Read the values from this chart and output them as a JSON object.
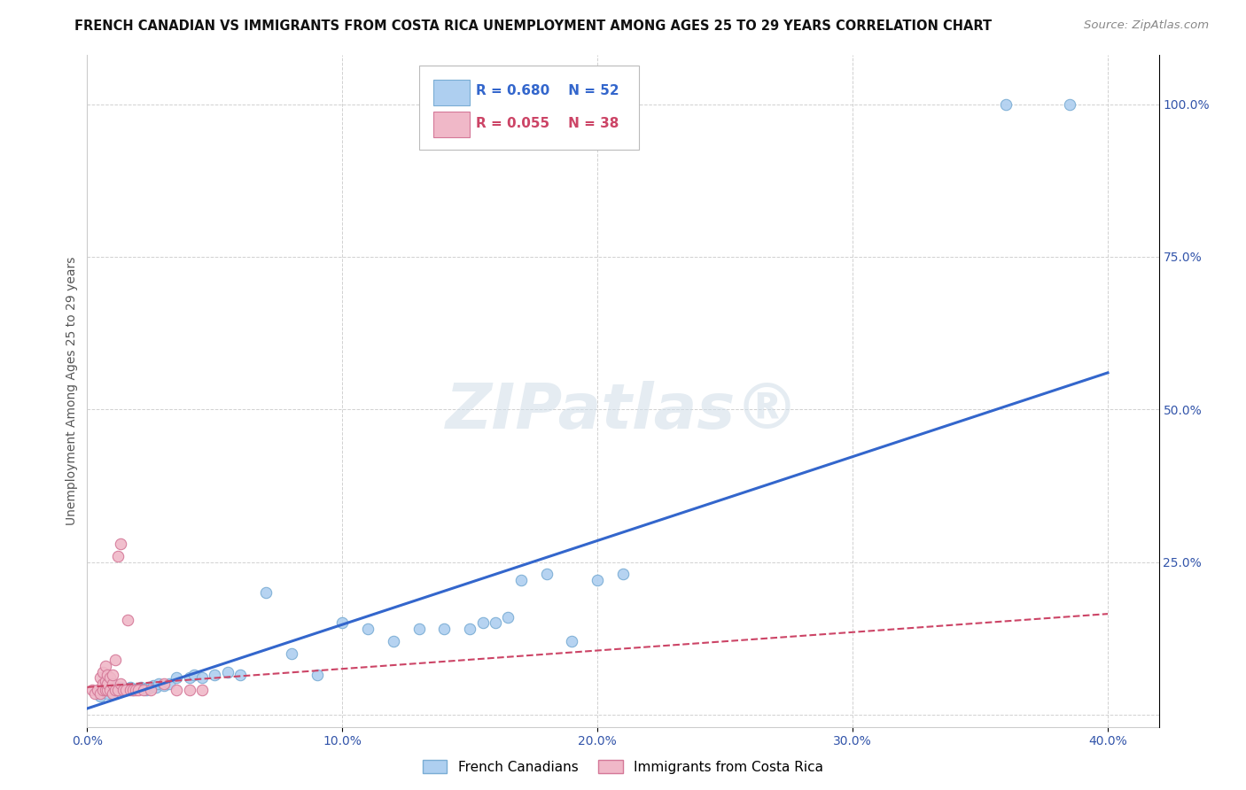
{
  "title": "FRENCH CANADIAN VS IMMIGRANTS FROM COSTA RICA UNEMPLOYMENT AMONG AGES 25 TO 29 YEARS CORRELATION CHART",
  "source": "Source: ZipAtlas.com",
  "ylabel": "Unemployment Among Ages 25 to 29 years",
  "xlim": [
    0.0,
    0.42
  ],
  "ylim": [
    -0.02,
    1.08
  ],
  "xticks": [
    0.0,
    0.1,
    0.2,
    0.3,
    0.4
  ],
  "xtick_labels": [
    "0.0%",
    "10.0%",
    "20.0%",
    "30.0%",
    "40.0%"
  ],
  "yticks": [
    0.0,
    0.25,
    0.5,
    0.75,
    1.0
  ],
  "ytick_labels": [
    "",
    "25.0%",
    "50.0%",
    "75.0%",
    "100.0%"
  ],
  "blue_R": 0.68,
  "blue_N": 52,
  "pink_R": 0.055,
  "pink_N": 38,
  "blue_color": "#aecff0",
  "blue_edge_color": "#7aadd4",
  "pink_color": "#f0b8c8",
  "pink_edge_color": "#d47898",
  "blue_line_color": "#3366cc",
  "pink_line_color": "#cc4466",
  "blue_label": "French Canadians",
  "pink_label": "Immigrants from Costa Rica",
  "background_color": "#ffffff",
  "blue_points_x": [
    0.005,
    0.007,
    0.008,
    0.009,
    0.01,
    0.01,
    0.011,
    0.012,
    0.013,
    0.014,
    0.015,
    0.016,
    0.017,
    0.018,
    0.019,
    0.02,
    0.021,
    0.022,
    0.023,
    0.024,
    0.025,
    0.026,
    0.027,
    0.028,
    0.03,
    0.032,
    0.035,
    0.04,
    0.042,
    0.045,
    0.05,
    0.055,
    0.06,
    0.07,
    0.08,
    0.09,
    0.1,
    0.11,
    0.12,
    0.13,
    0.14,
    0.15,
    0.155,
    0.16,
    0.165,
    0.17,
    0.18,
    0.19,
    0.2,
    0.21,
    0.36,
    0.385
  ],
  "blue_points_y": [
    0.03,
    0.04,
    0.035,
    0.04,
    0.035,
    0.045,
    0.04,
    0.04,
    0.045,
    0.04,
    0.042,
    0.04,
    0.045,
    0.04,
    0.042,
    0.042,
    0.045,
    0.042,
    0.04,
    0.045,
    0.045,
    0.048,
    0.045,
    0.05,
    0.048,
    0.05,
    0.06,
    0.06,
    0.065,
    0.06,
    0.065,
    0.07,
    0.065,
    0.2,
    0.1,
    0.065,
    0.15,
    0.14,
    0.12,
    0.14,
    0.14,
    0.14,
    0.15,
    0.15,
    0.16,
    0.22,
    0.23,
    0.12,
    0.22,
    0.23,
    1.0,
    1.0
  ],
  "pink_points_x": [
    0.002,
    0.003,
    0.004,
    0.005,
    0.005,
    0.006,
    0.006,
    0.006,
    0.007,
    0.007,
    0.007,
    0.008,
    0.008,
    0.008,
    0.009,
    0.009,
    0.01,
    0.01,
    0.01,
    0.011,
    0.011,
    0.012,
    0.012,
    0.013,
    0.013,
    0.014,
    0.015,
    0.016,
    0.017,
    0.018,
    0.019,
    0.02,
    0.022,
    0.025,
    0.03,
    0.035,
    0.04,
    0.045
  ],
  "pink_points_y": [
    0.04,
    0.035,
    0.04,
    0.035,
    0.06,
    0.05,
    0.04,
    0.07,
    0.04,
    0.055,
    0.08,
    0.04,
    0.05,
    0.065,
    0.04,
    0.06,
    0.035,
    0.05,
    0.065,
    0.04,
    0.09,
    0.04,
    0.26,
    0.28,
    0.05,
    0.04,
    0.04,
    0.155,
    0.04,
    0.04,
    0.04,
    0.04,
    0.04,
    0.04,
    0.05,
    0.04,
    0.04,
    0.04
  ],
  "blue_line_x0": 0.0,
  "blue_line_x1": 0.4,
  "blue_line_y0": 0.01,
  "blue_line_y1": 0.56,
  "pink_line_x0": 0.0,
  "pink_line_x1": 0.4,
  "pink_line_y0": 0.045,
  "pink_line_y1": 0.165,
  "marker_size": 80,
  "title_fontsize": 10.5,
  "axis_label_fontsize": 10,
  "tick_fontsize": 10,
  "source_fontsize": 9.5
}
